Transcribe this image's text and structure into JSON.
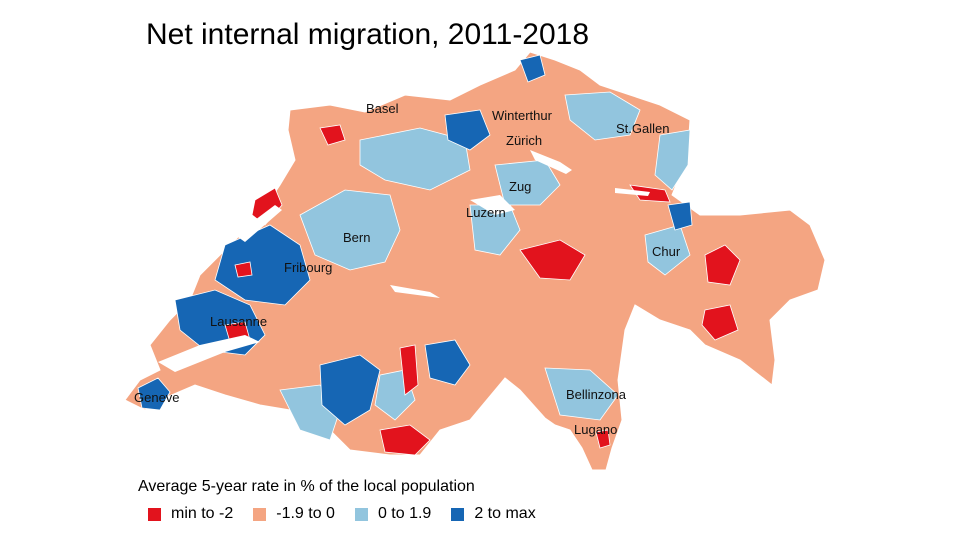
{
  "title": "Net internal migration, 2011-2018",
  "colors": {
    "min_to_neg2": "#e2131d",
    "neg1_9_to_0": "#f4a582",
    "zero_to_1_9": "#92c5de",
    "two_to_max": "#1666b4",
    "border": "#ffffff"
  },
  "legend": {
    "title": "Average 5-year rate in % of the local population",
    "items": [
      {
        "label": "min to -2",
        "color": "#e2131d"
      },
      {
        "label": "-1.9 to 0",
        "color": "#f4a582"
      },
      {
        "label": "0 to 1.9",
        "color": "#92c5de"
      },
      {
        "label": "2 to max",
        "color": "#1666b4"
      }
    ]
  },
  "cities": [
    {
      "name": "Basel"
    },
    {
      "name": "Winterthur"
    },
    {
      "name": "St.Gallen"
    },
    {
      "name": "Zürich"
    },
    {
      "name": "Zug"
    },
    {
      "name": "Luzern"
    },
    {
      "name": "Bern"
    },
    {
      "name": "Chur"
    },
    {
      "name": "Fribourg"
    },
    {
      "name": "Lausanne"
    },
    {
      "name": "Geneve"
    },
    {
      "name": "Bellinzona"
    },
    {
      "name": "Lugano"
    }
  ]
}
